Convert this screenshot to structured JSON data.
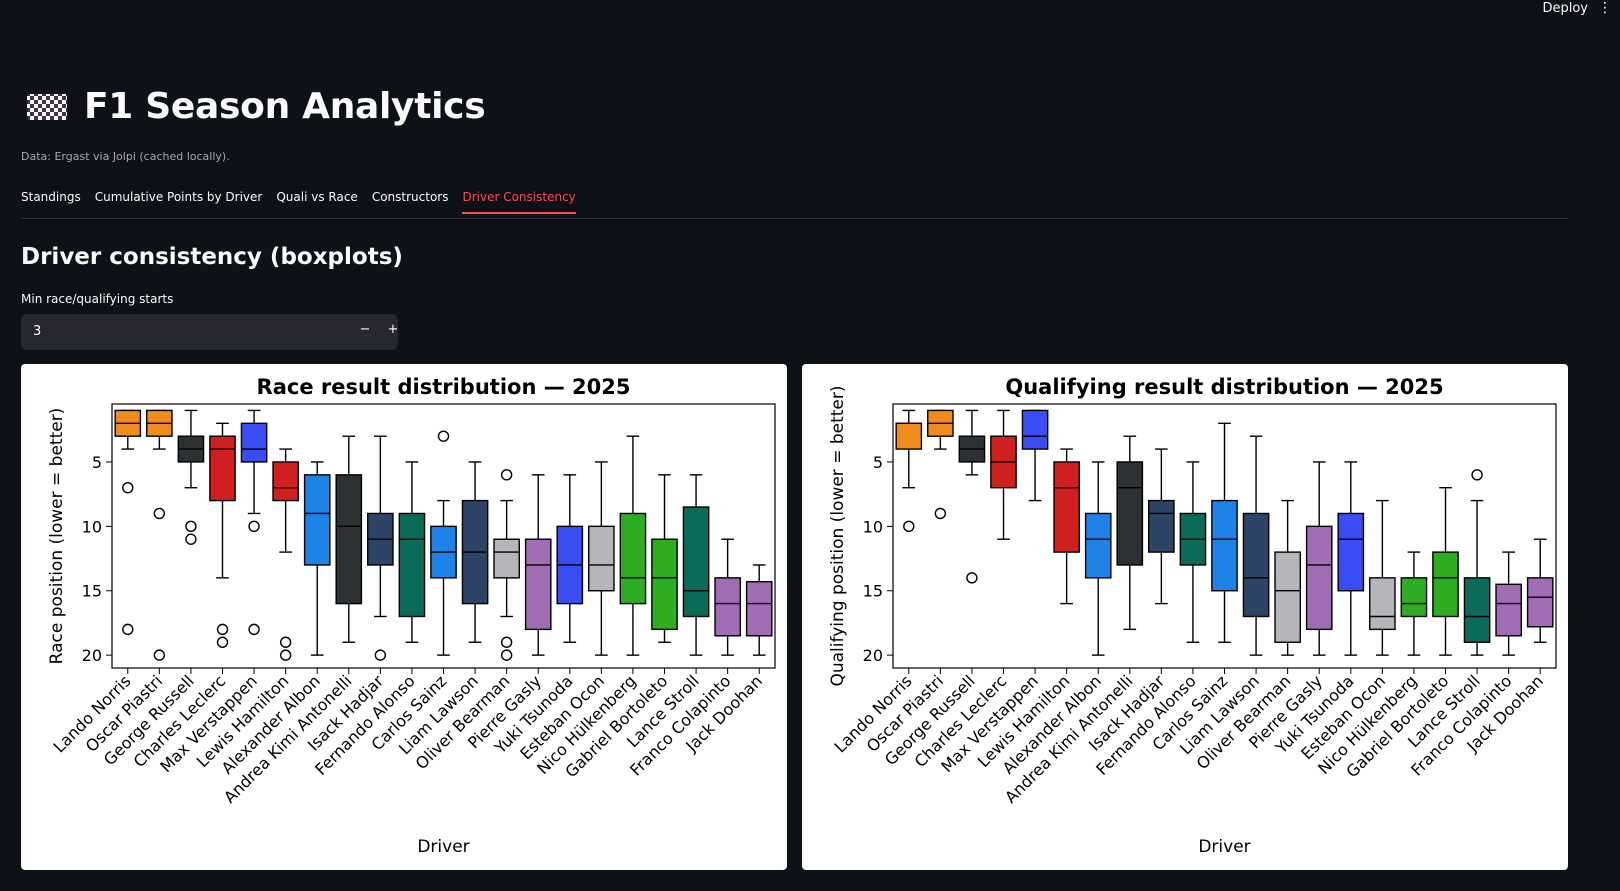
{
  "topbar": {
    "deploy_label": "Deploy",
    "menu_glyph": "⋮"
  },
  "header": {
    "icon": "checkered-flag-icon",
    "title": "F1 Season Analytics",
    "caption": "Data: Ergast via Jolpi (cached locally)."
  },
  "tabs": [
    {
      "label": "Standings",
      "active": false
    },
    {
      "label": "Cumulative Points by Driver",
      "active": false
    },
    {
      "label": "Quali vs Race",
      "active": false
    },
    {
      "label": "Constructors",
      "active": false
    },
    {
      "label": "Driver Consistency",
      "active": true
    }
  ],
  "section": {
    "heading": "Driver consistency (boxplots)"
  },
  "min_starts": {
    "label": "Min race/qualifying starts",
    "value": "3",
    "minus": "−",
    "plus": "+"
  },
  "colors": {
    "accent": "#ff4b4b",
    "background": "#0e1117",
    "input_bg": "#262730"
  },
  "chart_data": [
    {
      "type": "boxplot",
      "title": "Race result distribution — 2025",
      "xlabel": "Driver",
      "ylabel": "Race position (lower = better)",
      "ylim": [
        21,
        0.5
      ],
      "y_inverted": true,
      "yticks": [
        5,
        10,
        15,
        20
      ],
      "categories": [
        "Lando Norris",
        "Oscar Piastri",
        "George Russell",
        "Charles Leclerc",
        "Max Verstappen",
        "Lewis Hamilton",
        "Alexander Albon",
        "Andrea Kimi Antonelli",
        "Isack Hadjar",
        "Fernando Alonso",
        "Carlos Sainz",
        "Liam Lawson",
        "Oliver Bearman",
        "Pierre Gasly",
        "Yuki Tsunoda",
        "Esteban Ocon",
        "Nico Hülkenberg",
        "Gabriel Bortoleto",
        "Lance Stroll",
        "Franco Colapinto",
        "Jack Doohan"
      ],
      "boxes": [
        {
          "color": "#f08c1e",
          "whislo": 1,
          "q1": 1,
          "med": 2,
          "q3": 3,
          "whishi": 4,
          "fliers": [
            7,
            18
          ]
        },
        {
          "color": "#f08c1e",
          "whislo": 1,
          "q1": 1,
          "med": 2,
          "q3": 3,
          "whishi": 4,
          "fliers": [
            9,
            20
          ]
        },
        {
          "color": "#2d3133",
          "whislo": 1,
          "q1": 3,
          "med": 4,
          "q3": 5,
          "whishi": 7,
          "fliers": [
            10,
            11
          ]
        },
        {
          "color": "#d01f1f",
          "whislo": 2,
          "q1": 3,
          "med": 4,
          "q3": 8,
          "whishi": 14,
          "fliers": [
            18,
            19
          ]
        },
        {
          "color": "#3a4df5",
          "whislo": 1,
          "q1": 2,
          "med": 4,
          "q3": 5,
          "whishi": 9,
          "fliers": [
            10,
            18
          ]
        },
        {
          "color": "#d01f1f",
          "whislo": 4,
          "q1": 5,
          "med": 7,
          "q3": 8,
          "whishi": 12,
          "fliers": [
            19,
            20
          ]
        },
        {
          "color": "#1e82e6",
          "whislo": 5,
          "q1": 6,
          "med": 9,
          "q3": 13,
          "whishi": 20,
          "fliers": []
        },
        {
          "color": "#2d3133",
          "whislo": 3,
          "q1": 6,
          "med": 10,
          "q3": 16,
          "whishi": 19,
          "fliers": []
        },
        {
          "color": "#2d4466",
          "whislo": 3,
          "q1": 9,
          "med": 11,
          "q3": 13,
          "whishi": 17,
          "fliers": [
            20
          ]
        },
        {
          "color": "#0b6b59",
          "whislo": 5,
          "q1": 9,
          "med": 11,
          "q3": 17,
          "whishi": 19,
          "fliers": []
        },
        {
          "color": "#1e82e6",
          "whislo": 8,
          "q1": 10,
          "med": 12,
          "q3": 14,
          "whishi": 20,
          "fliers": [
            3
          ]
        },
        {
          "color": "#2d4466",
          "whislo": 5,
          "q1": 8,
          "med": 12,
          "q3": 16,
          "whishi": 19,
          "fliers": []
        },
        {
          "color": "#b4b6ba",
          "whislo": 8,
          "q1": 11,
          "med": 12,
          "q3": 14,
          "whishi": 17,
          "fliers": [
            6,
            19,
            20
          ]
        },
        {
          "color": "#a06cb4",
          "whislo": 6,
          "q1": 11,
          "med": 13,
          "q3": 18,
          "whishi": 20,
          "fliers": []
        },
        {
          "color": "#3a4df5",
          "whislo": 6,
          "q1": 10,
          "med": 13,
          "q3": 16,
          "whishi": 19,
          "fliers": []
        },
        {
          "color": "#b4b6ba",
          "whislo": 5,
          "q1": 10,
          "med": 13,
          "q3": 15,
          "whishi": 20,
          "fliers": []
        },
        {
          "color": "#2eac22",
          "whislo": 3,
          "q1": 9,
          "med": 14,
          "q3": 16,
          "whishi": 20,
          "fliers": []
        },
        {
          "color": "#2eac22",
          "whislo": 6,
          "q1": 11,
          "med": 14,
          "q3": 18,
          "whishi": 19,
          "fliers": []
        },
        {
          "color": "#0b6b59",
          "whislo": 6,
          "q1": 8.5,
          "med": 15,
          "q3": 17,
          "whishi": 20,
          "fliers": []
        },
        {
          "color": "#a06cb4",
          "whislo": 11,
          "q1": 14,
          "med": 16,
          "q3": 18.5,
          "whishi": 20,
          "fliers": []
        },
        {
          "color": "#a06cb4",
          "whislo": 13,
          "q1": 14.3,
          "med": 16,
          "q3": 18.5,
          "whishi": 20,
          "fliers": []
        }
      ]
    },
    {
      "type": "boxplot",
      "title": "Qualifying result distribution — 2025",
      "xlabel": "Driver",
      "ylabel": "Qualifying position (lower = better)",
      "ylim": [
        21,
        0.5
      ],
      "y_inverted": true,
      "yticks": [
        5,
        10,
        15,
        20
      ],
      "categories": [
        "Lando Norris",
        "Oscar Piastri",
        "George Russell",
        "Charles Leclerc",
        "Max Verstappen",
        "Lewis Hamilton",
        "Alexander Albon",
        "Andrea Kimi Antonelli",
        "Isack Hadjar",
        "Fernando Alonso",
        "Carlos Sainz",
        "Liam Lawson",
        "Oliver Bearman",
        "Pierre Gasly",
        "Yuki Tsunoda",
        "Esteban Ocon",
        "Nico Hülkenberg",
        "Gabriel Bortoleto",
        "Lance Stroll",
        "Franco Colapinto",
        "Jack Doohan"
      ],
      "boxes": [
        {
          "color": "#f08c1e",
          "whislo": 1,
          "q1": 2,
          "med": 2,
          "q3": 4,
          "whishi": 7,
          "fliers": [
            10
          ]
        },
        {
          "color": "#f08c1e",
          "whislo": 1,
          "q1": 1,
          "med": 2,
          "q3": 3,
          "whishi": 4,
          "fliers": [
            9
          ]
        },
        {
          "color": "#2d3133",
          "whislo": 1,
          "q1": 3,
          "med": 4,
          "q3": 5,
          "whishi": 6,
          "fliers": [
            14
          ]
        },
        {
          "color": "#d01f1f",
          "whislo": 1,
          "q1": 3,
          "med": 5,
          "q3": 7,
          "whishi": 11,
          "fliers": []
        },
        {
          "color": "#3a4df5",
          "whislo": 1,
          "q1": 1,
          "med": 3,
          "q3": 4,
          "whishi": 8,
          "fliers": []
        },
        {
          "color": "#d01f1f",
          "whislo": 4,
          "q1": 5,
          "med": 7,
          "q3": 12,
          "whishi": 16,
          "fliers": []
        },
        {
          "color": "#1e82e6",
          "whislo": 5,
          "q1": 9,
          "med": 11,
          "q3": 14,
          "whishi": 20,
          "fliers": []
        },
        {
          "color": "#2d3133",
          "whislo": 3,
          "q1": 5,
          "med": 7,
          "q3": 13,
          "whishi": 18,
          "fliers": []
        },
        {
          "color": "#2d4466",
          "whislo": 4,
          "q1": 8,
          "med": 9,
          "q3": 12,
          "whishi": 16,
          "fliers": []
        },
        {
          "color": "#0b6b59",
          "whislo": 5,
          "q1": 9,
          "med": 11,
          "q3": 13,
          "whishi": 19,
          "fliers": []
        },
        {
          "color": "#1e82e6",
          "whislo": 2,
          "q1": 8,
          "med": 11,
          "q3": 15,
          "whishi": 19,
          "fliers": []
        },
        {
          "color": "#2d4466",
          "whislo": 3,
          "q1": 9,
          "med": 14,
          "q3": 17,
          "whishi": 20,
          "fliers": []
        },
        {
          "color": "#b4b6ba",
          "whislo": 8,
          "q1": 12,
          "med": 15,
          "q3": 19,
          "whishi": 20,
          "fliers": []
        },
        {
          "color": "#a06cb4",
          "whislo": 5,
          "q1": 10,
          "med": 13,
          "q3": 18,
          "whishi": 20,
          "fliers": []
        },
        {
          "color": "#3a4df5",
          "whislo": 5,
          "q1": 9,
          "med": 11,
          "q3": 15,
          "whishi": 20,
          "fliers": []
        },
        {
          "color": "#b4b6ba",
          "whislo": 8,
          "q1": 14,
          "med": 17,
          "q3": 18,
          "whishi": 20,
          "fliers": []
        },
        {
          "color": "#2eac22",
          "whislo": 12,
          "q1": 14,
          "med": 16,
          "q3": 17,
          "whishi": 20,
          "fliers": []
        },
        {
          "color": "#2eac22",
          "whislo": 7,
          "q1": 12,
          "med": 14,
          "q3": 17,
          "whishi": 20,
          "fliers": []
        },
        {
          "color": "#0b6b59",
          "whislo": 8,
          "q1": 14,
          "med": 17,
          "q3": 19,
          "whishi": 20,
          "fliers": [
            6
          ]
        },
        {
          "color": "#a06cb4",
          "whislo": 12,
          "q1": 14.5,
          "med": 16,
          "q3": 18.5,
          "whishi": 20,
          "fliers": []
        },
        {
          "color": "#a06cb4",
          "whislo": 11,
          "q1": 14,
          "med": 15.5,
          "q3": 17.8,
          "whishi": 19,
          "fliers": []
        }
      ]
    }
  ]
}
